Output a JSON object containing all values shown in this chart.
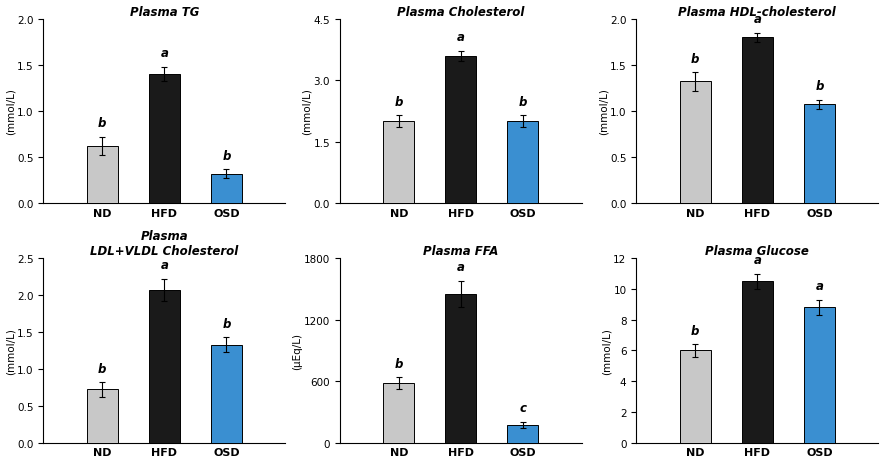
{
  "subplots": [
    {
      "title": "Plasma TG",
      "ylabel": "(mmol/L)",
      "categories": [
        "ND",
        "HFD",
        "OSD"
      ],
      "values": [
        0.62,
        1.4,
        0.32
      ],
      "errors": [
        0.1,
        0.08,
        0.05
      ],
      "letters": [
        "b",
        "a",
        "b"
      ],
      "ylim": [
        0,
        2.0
      ],
      "yticks": [
        0.0,
        0.5,
        1.0,
        1.5,
        2.0
      ],
      "colors": [
        "#c8c8c8",
        "#1a1a1a",
        "#3a8fd1"
      ]
    },
    {
      "title": "Plasma Cholesterol",
      "ylabel": "(mmol/L)",
      "categories": [
        "ND",
        "HFD",
        "OSD"
      ],
      "values": [
        2.0,
        3.6,
        2.0
      ],
      "errors": [
        0.15,
        0.12,
        0.15
      ],
      "letters": [
        "b",
        "a",
        "b"
      ],
      "ylim": [
        0,
        4.5
      ],
      "yticks": [
        0.0,
        1.5,
        3.0,
        4.5
      ],
      "colors": [
        "#c8c8c8",
        "#1a1a1a",
        "#3a8fd1"
      ]
    },
    {
      "title": "Plasma HDL-cholesterol",
      "ylabel": "(mmol/L)",
      "categories": [
        "ND",
        "HFD",
        "OSD"
      ],
      "values": [
        1.32,
        1.8,
        1.07
      ],
      "errors": [
        0.1,
        0.05,
        0.05
      ],
      "letters": [
        "b",
        "a",
        "b"
      ],
      "ylim": [
        0,
        2.0
      ],
      "yticks": [
        0,
        0.5,
        1.0,
        1.5,
        2.0
      ],
      "colors": [
        "#c8c8c8",
        "#1a1a1a",
        "#3a8fd1"
      ]
    },
    {
      "title": "Plasma\nLDL+VLDL Cholesterol",
      "ylabel": "(mmol/L)",
      "categories": [
        "ND",
        "HFD",
        "OSD"
      ],
      "values": [
        0.72,
        2.07,
        1.33
      ],
      "errors": [
        0.1,
        0.15,
        0.1
      ],
      "letters": [
        "b",
        "a",
        "b"
      ],
      "ylim": [
        0,
        2.5
      ],
      "yticks": [
        0,
        0.5,
        1.0,
        1.5,
        2.0,
        2.5
      ],
      "colors": [
        "#c8c8c8",
        "#1a1a1a",
        "#3a8fd1"
      ]
    },
    {
      "title": "Plasma FFA",
      "ylabel": "(μEq/L)",
      "categories": [
        "ND",
        "HFD",
        "OSD"
      ],
      "values": [
        580,
        1450,
        175
      ],
      "errors": [
        60,
        130,
        30
      ],
      "letters": [
        "b",
        "a",
        "c"
      ],
      "ylim": [
        0,
        1800
      ],
      "yticks": [
        0,
        600,
        1200,
        1800
      ],
      "colors": [
        "#c8c8c8",
        "#1a1a1a",
        "#3a8fd1"
      ]
    },
    {
      "title": "Plasma Glucose",
      "ylabel": "(mmol/L)",
      "categories": [
        "ND",
        "HFD",
        "OSD"
      ],
      "values": [
        6.0,
        10.5,
        8.8
      ],
      "errors": [
        0.4,
        0.5,
        0.5
      ],
      "letters": [
        "b",
        "a",
        "a"
      ],
      "ylim": [
        0,
        12
      ],
      "yticks": [
        0,
        2,
        4,
        6,
        8,
        10,
        12
      ],
      "colors": [
        "#c8c8c8",
        "#1a1a1a",
        "#3a8fd1"
      ]
    }
  ],
  "fig_width": 8.84,
  "fig_height": 4.64,
  "dpi": 100,
  "background_color": "#ffffff",
  "title_fontsize": 8.5,
  "label_fontsize": 7.5,
  "tick_fontsize": 7.5,
  "letter_fontsize": 8.5,
  "xtick_fontsize": 8.0
}
